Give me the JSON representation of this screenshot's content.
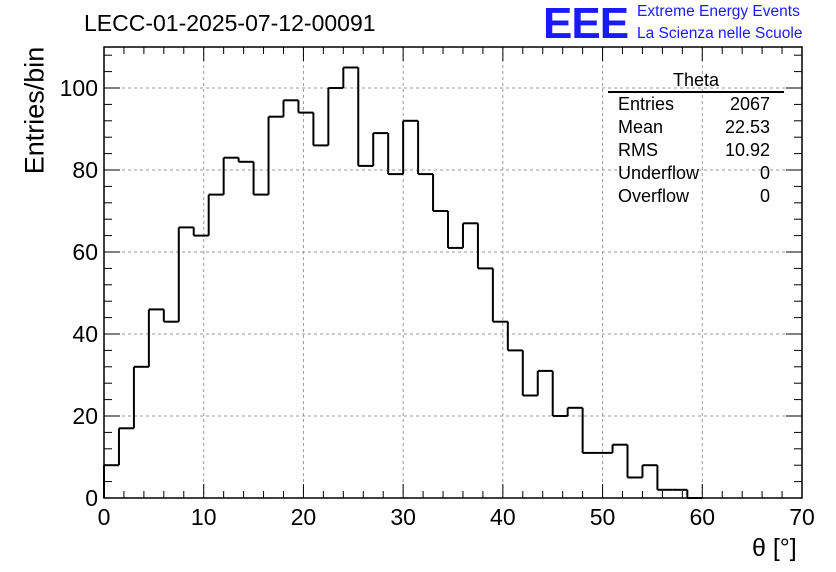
{
  "header": {
    "run_title": "LECC-01-2025-07-12-00091",
    "logo_text": "EEE",
    "logo_line1": "Extreme Energy Events",
    "logo_line2": "La Scienza nelle Scuole"
  },
  "stats_box": {
    "title": "Theta",
    "rows": [
      {
        "label": "Entries",
        "value": "2067"
      },
      {
        "label": "Mean",
        "value": "22.53"
      },
      {
        "label": "RMS",
        "value": "10.92"
      },
      {
        "label": "Underflow",
        "value": "0"
      },
      {
        "label": "Overflow",
        "value": "0"
      }
    ]
  },
  "colors": {
    "logo": "#1a1aff",
    "histogram": "#000000",
    "grid": "#9a9a9a"
  },
  "chart_data": {
    "type": "bar",
    "style": "step-histogram",
    "title": "LECC-01-2025-07-12-00091",
    "xlabel": "θ [°]",
    "ylabel": "Entries/bin",
    "xlim": [
      0,
      70
    ],
    "ylim": [
      0,
      110
    ],
    "grid": true,
    "bin_width": 1.5,
    "x_start": 0,
    "x_ticks": [
      0,
      10,
      20,
      30,
      40,
      50,
      60,
      70
    ],
    "y_ticks": [
      0,
      20,
      40,
      60,
      80,
      100
    ],
    "values": [
      8,
      17,
      32,
      46,
      43,
      66,
      64,
      74,
      83,
      82,
      74,
      93,
      97,
      94,
      86,
      100,
      105,
      81,
      89,
      79,
      92,
      79,
      70,
      61,
      67,
      56,
      43,
      36,
      25,
      31,
      20,
      22,
      11,
      11,
      13,
      5,
      8,
      2,
      2,
      0
    ]
  }
}
